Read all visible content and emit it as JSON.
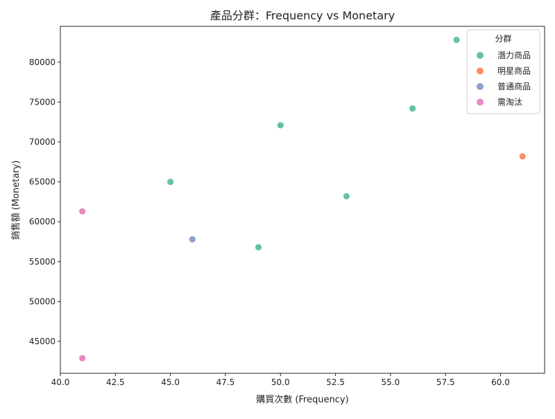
{
  "chart_data": {
    "type": "scatter",
    "title": "產品分群：Frequency vs Monetary",
    "xlabel": "購買次數 (Frequency)",
    "ylabel": "銷售額 (Monetary)",
    "xlim": [
      40.0,
      62.0
    ],
    "ylim": [
      41000,
      84500
    ],
    "xticks": [
      40.0,
      42.5,
      45.0,
      47.5,
      50.0,
      52.5,
      55.0,
      57.5,
      60.0
    ],
    "xtick_labels": [
      "40.0",
      "42.5",
      "45.0",
      "47.5",
      "50.0",
      "52.5",
      "55.0",
      "57.5",
      "60.0"
    ],
    "yticks": [
      45000,
      50000,
      55000,
      60000,
      65000,
      70000,
      75000,
      80000
    ],
    "ytick_labels": [
      "45000",
      "50000",
      "55000",
      "60000",
      "65000",
      "70000",
      "75000",
      "80000"
    ],
    "grid": false,
    "legend": {
      "title": "分群",
      "placement": "top-right"
    },
    "series": [
      {
        "name": "潛力商品",
        "color": "#66c2a5",
        "points": [
          {
            "x": 58,
            "y": 82800
          },
          {
            "x": 56,
            "y": 74200
          },
          {
            "x": 50,
            "y": 72100
          },
          {
            "x": 45,
            "y": 65000
          },
          {
            "x": 53,
            "y": 63200
          },
          {
            "x": 49,
            "y": 56800
          }
        ]
      },
      {
        "name": "明星商品",
        "color": "#fc8d62",
        "points": [
          {
            "x": 61,
            "y": 68200
          }
        ]
      },
      {
        "name": "普通商品",
        "color": "#8da0cb",
        "points": [
          {
            "x": 46,
            "y": 57800
          }
        ]
      },
      {
        "name": "需淘汰",
        "color": "#e78ac3",
        "points": [
          {
            "x": 41,
            "y": 61300
          },
          {
            "x": 41,
            "y": 42900
          }
        ]
      }
    ]
  }
}
